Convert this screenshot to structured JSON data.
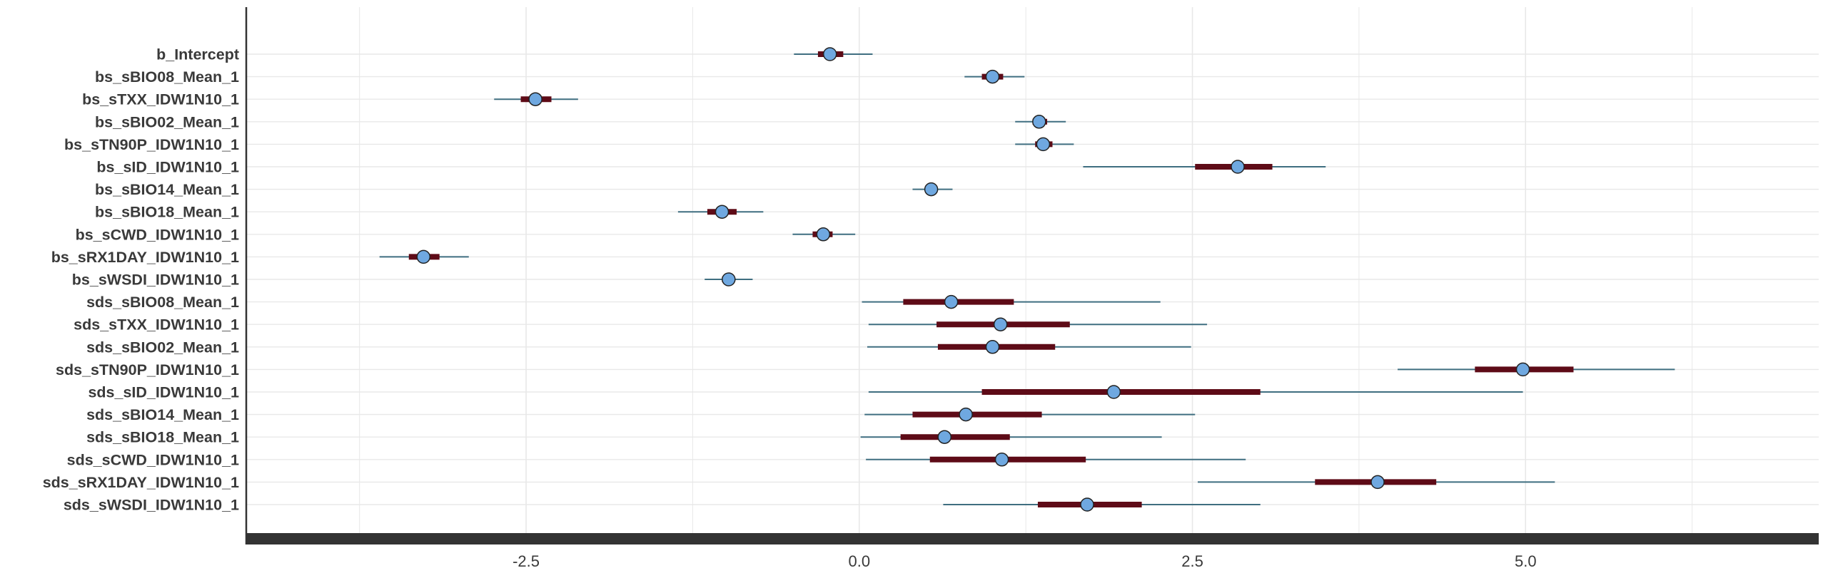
{
  "chart_data": {
    "type": "interval",
    "xlim": [
      -4.6,
      7.2
    ],
    "x_ticks": [
      -2.5,
      0.0,
      2.5,
      5.0
    ],
    "x_tick_labels": [
      "-2.5",
      "0.0",
      "2.5",
      "5.0"
    ],
    "grid": true,
    "colors": {
      "point_fill": "#6fa8e0",
      "inner_interval": "#5e0b17",
      "outer_interval": "#3f6e80",
      "axis": "#333333",
      "grid": "#e8e8e8"
    },
    "parameters": [
      {
        "name": "b_Intercept",
        "mean": -0.22,
        "inner": [
          -0.31,
          -0.12
        ],
        "outer": [
          -0.49,
          0.1
        ]
      },
      {
        "name": "bs_sBIO08_Mean_1",
        "mean": 1.0,
        "inner": [
          0.92,
          1.08
        ],
        "outer": [
          0.79,
          1.24
        ]
      },
      {
        "name": "bs_sTXX_IDW1N10_1",
        "mean": -2.43,
        "inner": [
          -2.54,
          -2.31
        ],
        "outer": [
          -2.74,
          -2.11
        ]
      },
      {
        "name": "bs_sBIO02_Mean_1",
        "mean": 1.35,
        "inner": [
          1.3,
          1.41
        ],
        "outer": [
          1.17,
          1.55
        ]
      },
      {
        "name": "bs_sTN90P_IDW1N10_1",
        "mean": 1.38,
        "inner": [
          1.32,
          1.45
        ],
        "outer": [
          1.17,
          1.61
        ]
      },
      {
        "name": "bs_sID_IDW1N10_1",
        "mean": 2.84,
        "inner": [
          2.52,
          3.1
        ],
        "outer": [
          1.68,
          3.5
        ]
      },
      {
        "name": "bs_sBIO14_Mean_1",
        "mean": 0.54,
        "inner": [
          0.51,
          0.57
        ],
        "outer": [
          0.4,
          0.7
        ]
      },
      {
        "name": "bs_sBIO18_Mean_1",
        "mean": -1.03,
        "inner": [
          -1.14,
          -0.92
        ],
        "outer": [
          -1.36,
          -0.72
        ]
      },
      {
        "name": "bs_sCWD_IDW1N10_1",
        "mean": -0.27,
        "inner": [
          -0.35,
          -0.2
        ],
        "outer": [
          -0.5,
          -0.03
        ]
      },
      {
        "name": "bs_sRX1DAY_IDW1N10_1",
        "mean": -3.27,
        "inner": [
          -3.38,
          -3.15
        ],
        "outer": [
          -3.6,
          -2.93
        ]
      },
      {
        "name": "bs_sWSDI_IDW1N10_1",
        "mean": -0.98,
        "inner": [
          -1.03,
          -0.94
        ],
        "outer": [
          -1.16,
          -0.8
        ]
      },
      {
        "name": "sds_sBIO08_Mean_1",
        "mean": 0.69,
        "inner": [
          0.33,
          1.16
        ],
        "outer": [
          0.02,
          2.26
        ]
      },
      {
        "name": "sds_sTXX_IDW1N10_1",
        "mean": 1.06,
        "inner": [
          0.58,
          1.58
        ],
        "outer": [
          0.07,
          2.61
        ]
      },
      {
        "name": "sds_sBIO02_Mean_1",
        "mean": 1.0,
        "inner": [
          0.59,
          1.47
        ],
        "outer": [
          0.06,
          2.49
        ]
      },
      {
        "name": "sds_sTN90P_IDW1N10_1",
        "mean": 4.98,
        "inner": [
          4.62,
          5.36
        ],
        "outer": [
          4.04,
          6.12
        ]
      },
      {
        "name": "sds_sID_IDW1N10_1",
        "mean": 1.91,
        "inner": [
          0.92,
          3.01
        ],
        "outer": [
          0.07,
          4.98
        ]
      },
      {
        "name": "sds_sBIO14_Mean_1",
        "mean": 0.8,
        "inner": [
          0.4,
          1.37
        ],
        "outer": [
          0.04,
          2.52
        ]
      },
      {
        "name": "sds_sBIO18_Mean_1",
        "mean": 0.64,
        "inner": [
          0.31,
          1.13
        ],
        "outer": [
          0.01,
          2.27
        ]
      },
      {
        "name": "sds_sCWD_IDW1N10_1",
        "mean": 1.07,
        "inner": [
          0.53,
          1.7
        ],
        "outer": [
          0.05,
          2.9
        ]
      },
      {
        "name": "sds_sRX1DAY_IDW1N10_1",
        "mean": 3.89,
        "inner": [
          3.42,
          4.33
        ],
        "outer": [
          2.54,
          5.22
        ]
      },
      {
        "name": "sds_sWSDI_IDW1N10_1",
        "mean": 1.71,
        "inner": [
          1.34,
          2.12
        ],
        "outer": [
          0.63,
          3.01
        ]
      }
    ]
  }
}
